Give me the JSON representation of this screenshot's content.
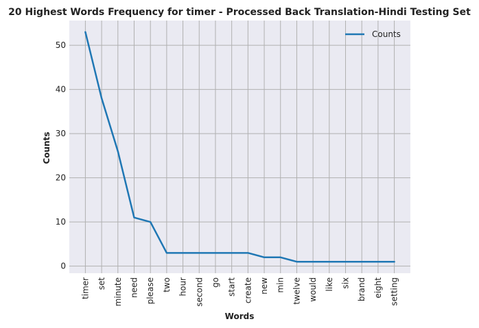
{
  "chart_data": {
    "type": "line",
    "title": "20 Highest Words Frequency for timer - Processed Back Translation-Hindi Testing Set",
    "xlabel": "Words",
    "ylabel": "Counts",
    "categories": [
      "timer",
      "set",
      "minute",
      "need",
      "please",
      "two",
      "hour",
      "second",
      "go",
      "start",
      "create",
      "new",
      "min",
      "twelve",
      "would",
      "like",
      "six",
      "brand",
      "eight",
      "setting"
    ],
    "series": [
      {
        "name": "Counts",
        "values": [
          53,
          38,
          26,
          11,
          10,
          3,
          3,
          3,
          3,
          3,
          3,
          2,
          2,
          1,
          1,
          1,
          1,
          1,
          1,
          1
        ]
      }
    ],
    "ylim": [
      -1.6,
      55.6
    ],
    "yticks": [
      0,
      10,
      20,
      30,
      40,
      50
    ],
    "grid": true,
    "legend": "top-right",
    "colors": {
      "line": "#1f77b4",
      "plot_background": "#eaeaf2",
      "grid": "#b0b0b0"
    }
  }
}
